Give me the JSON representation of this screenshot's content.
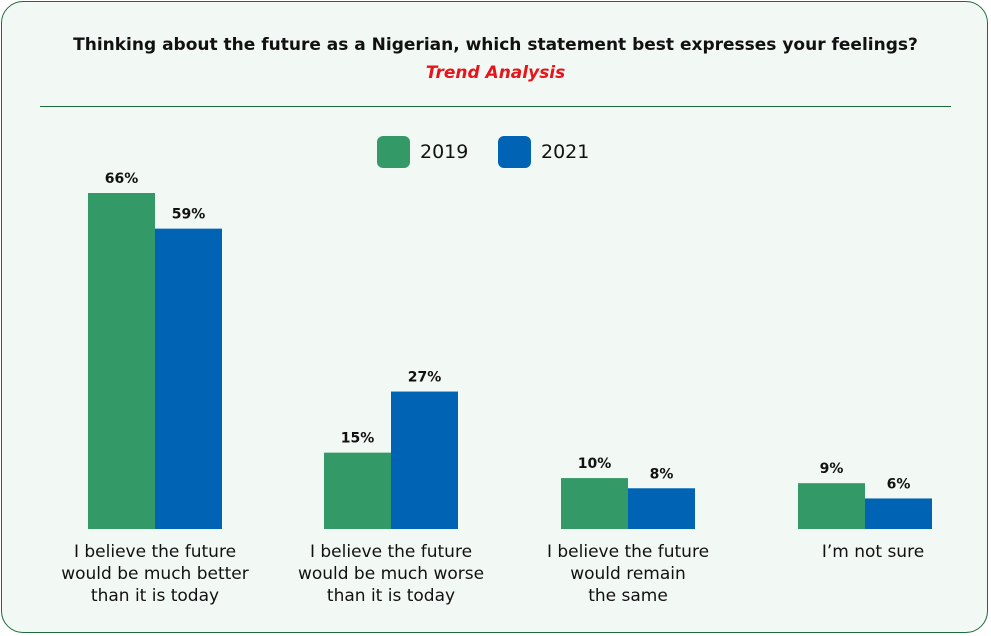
{
  "chart_data": {
    "type": "bar",
    "title": "Thinking about the future as a Nigerian, which statement best expresses your feelings?",
    "subtitle": "Trend Analysis",
    "categories": [
      "I believe the future\nwould be much better\nthan it is today",
      "I believe the future\nwould be much worse\nthan it is today",
      "I believe the future\nwould remain\nthe same",
      "I’m not sure"
    ],
    "series": [
      {
        "name": "2019",
        "values": [
          66,
          15,
          10,
          9
        ],
        "labels": [
          "66%",
          "15%",
          "10%",
          "9%"
        ],
        "color": "#339966"
      },
      {
        "name": "2021",
        "values": [
          59,
          27,
          8,
          6
        ],
        "labels": [
          "59%",
          "27%",
          "8%",
          "6%"
        ],
        "color": "#0063b4"
      }
    ],
    "ylim": [
      0,
      66
    ],
    "legend": "top-center",
    "grid": false
  },
  "colors": {
    "frame_border": "#1f6b3d",
    "background": "#f2f8f3",
    "subtitle": "#e8131b"
  }
}
